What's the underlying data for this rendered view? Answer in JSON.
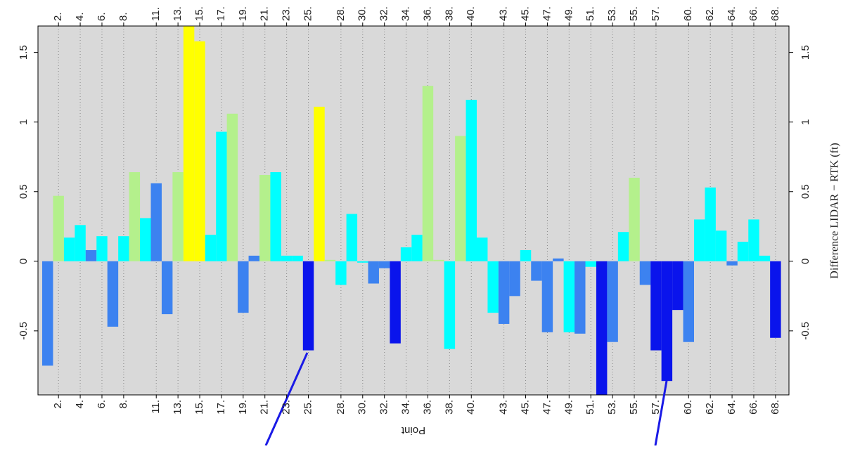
{
  "chart_data": {
    "type": "bar",
    "ylabel": "Difference LIDAR − RTK (ft)",
    "xlabel": "Point",
    "categories": [
      null,
      "2.",
      null,
      "4.",
      null,
      "6.",
      null,
      "8.",
      null,
      null,
      "11.",
      null,
      "13.",
      null,
      "15.",
      null,
      "17.",
      null,
      "19.",
      null,
      "21.",
      null,
      "23.",
      null,
      "25.",
      null,
      null,
      "28.",
      null,
      "30.",
      null,
      "32.",
      null,
      "34.",
      null,
      "36.",
      null,
      "38.",
      null,
      "40.",
      null,
      null,
      "43.",
      null,
      "45.",
      null,
      "47.",
      null,
      "49.",
      null,
      "51.",
      null,
      "53.",
      null,
      "55.",
      null,
      "57.",
      null,
      null,
      "60.",
      null,
      "62.",
      null,
      "64.",
      null,
      "66.",
      null,
      "68."
    ],
    "values": [
      -0.75,
      0.47,
      0.17,
      0.26,
      0.08,
      0.18,
      -0.47,
      0.18,
      0.64,
      0.31,
      0.56,
      -0.38,
      0.64,
      1.7,
      1.58,
      0.19,
      0.93,
      1.06,
      -0.37,
      0.04,
      0.62,
      0.64,
      0.04,
      0.04,
      -0.64,
      1.11,
      0.01,
      -0.17,
      0.34,
      -0.01,
      -0.16,
      -0.05,
      -0.59,
      0.1,
      0.19,
      1.26,
      0.01,
      -0.63,
      0.9,
      1.16,
      0.17,
      -0.37,
      -0.45,
      -0.25,
      0.08,
      -0.14,
      -0.51,
      0.02,
      -0.51,
      -0.52,
      -0.04,
      -0.96,
      -0.58,
      0.21,
      0.6,
      -0.17,
      -0.64,
      -0.86,
      -0.35,
      -0.58,
      0.3,
      0.53,
      0.22,
      -0.03,
      0.14,
      0.3,
      0.04,
      -0.55
    ],
    "colors": [
      "#3c82f0",
      "#b4f08c",
      "#00ffff",
      "#00ffff",
      "#3c82f0",
      "#00ffff",
      "#3c82f0",
      "#00ffff",
      "#b4f08c",
      "#00ffff",
      "#3c82f0",
      "#3c82f0",
      "#b4f08c",
      "#ffff00",
      "#ffff00",
      "#00ffff",
      "#00ffff",
      "#b4f08c",
      "#3c82f0",
      "#3c82f0",
      "#b4f08c",
      "#00ffff",
      "#00ffff",
      "#00ffff",
      "#0a14ec",
      "#ffff00",
      "#b4f08c",
      "#00ffff",
      "#00ffff",
      "#00ffff",
      "#3c82f0",
      "#3c82f0",
      "#0a14ec",
      "#00ffff",
      "#00ffff",
      "#b4f08c",
      "#b4f08c",
      "#00ffff",
      "#b4f08c",
      "#00ffff",
      "#00ffff",
      "#00ffff",
      "#3c82f0",
      "#3c82f0",
      "#00ffff",
      "#3c82f0",
      "#3c82f0",
      "#3c82f0",
      "#00ffff",
      "#3c82f0",
      "#00ffff",
      "#0a14ec",
      "#3c82f0",
      "#00ffff",
      "#b4f08c",
      "#3c82f0",
      "#0a14ec",
      "#0a14ec",
      "#0a14ec",
      "#3c82f0",
      "#00ffff",
      "#00ffff",
      "#00ffff",
      "#3c82f0",
      "#00ffff",
      "#00ffff",
      "#00ffff",
      "#0a14ec"
    ],
    "ylim": [
      -0.96,
      1.69
    ],
    "yticks": [
      -0.5,
      0,
      0.5,
      1,
      1.5
    ],
    "grid": true
  }
}
